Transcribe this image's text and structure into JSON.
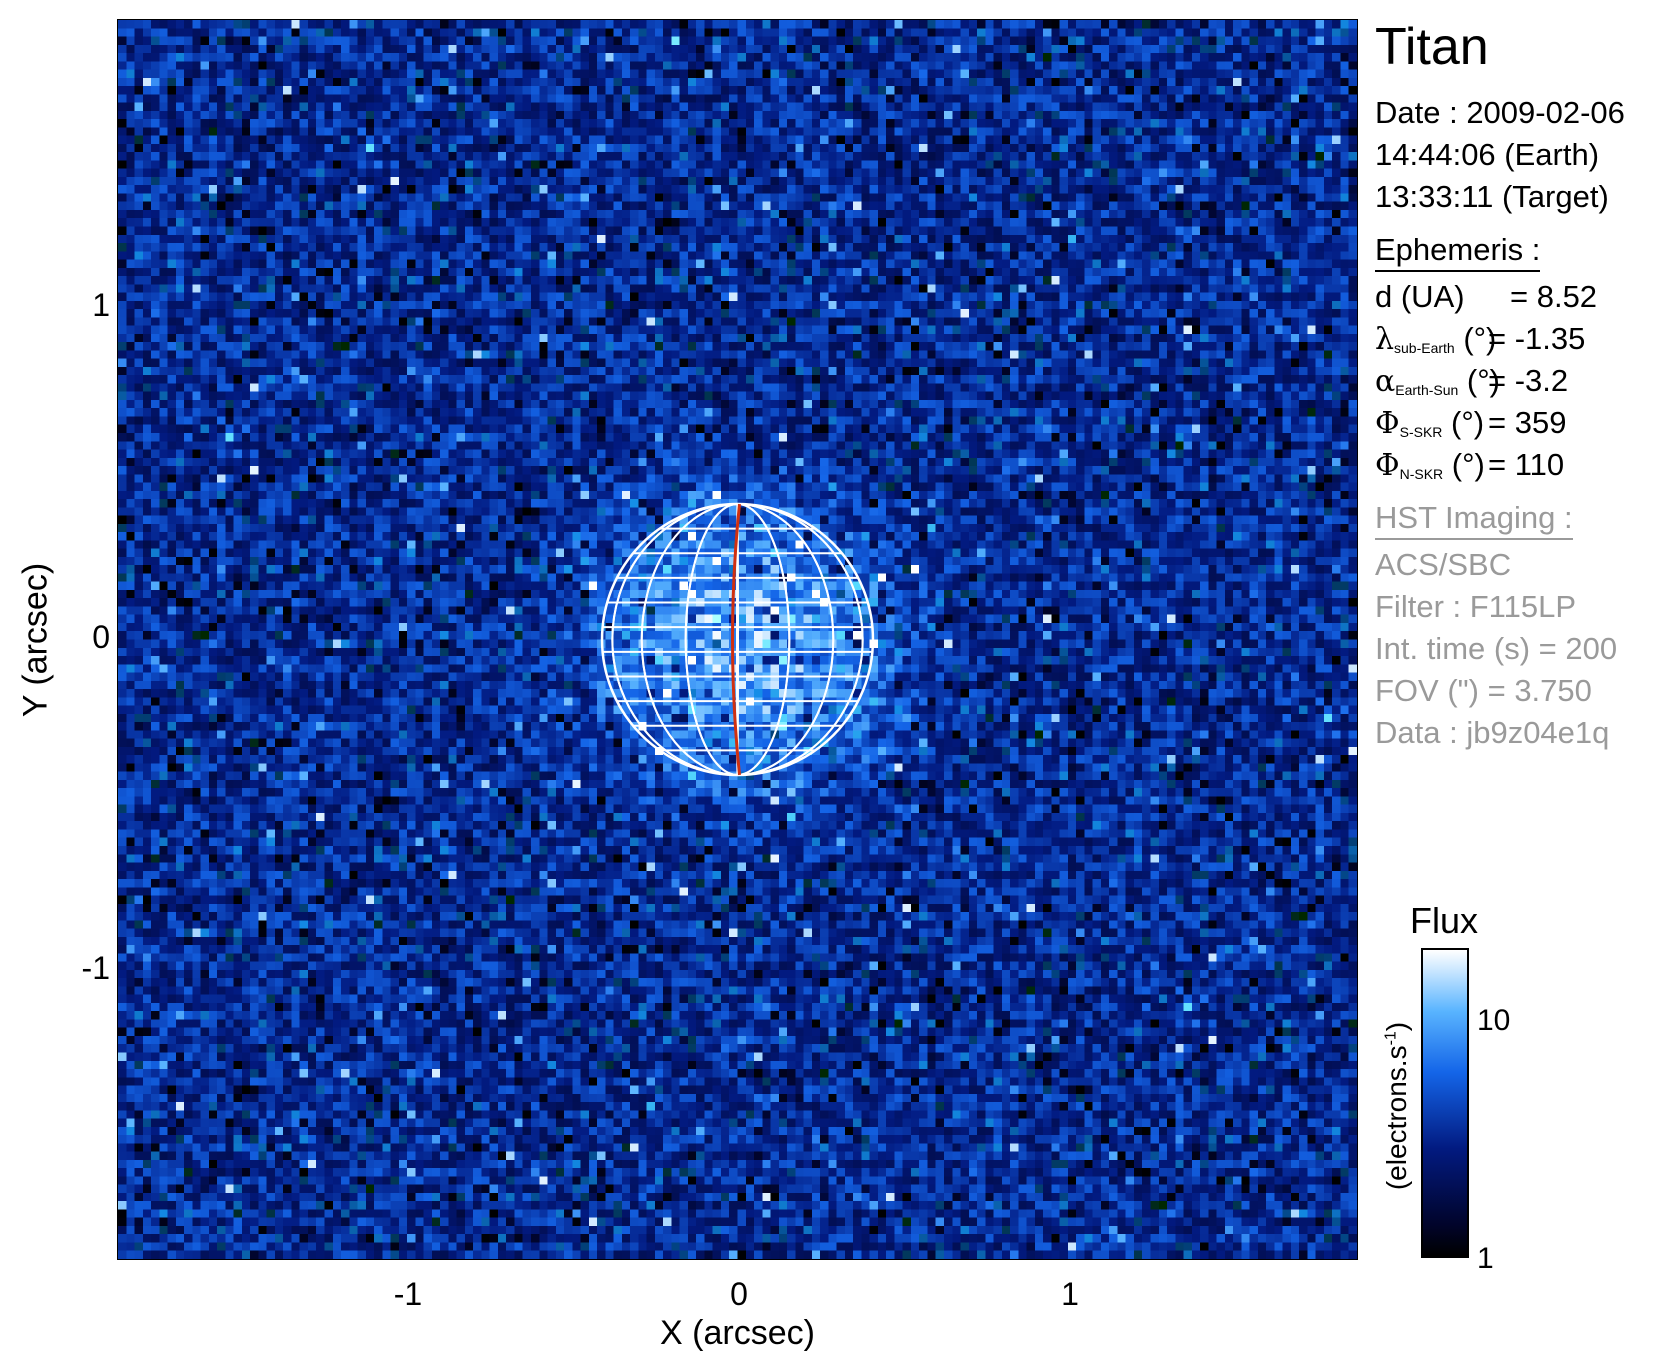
{
  "chart_data": {
    "type": "heatmap",
    "title": "Titan",
    "xlabel": "X (arcsec)",
    "ylabel": "Y (arcsec)",
    "xlim": [
      -1.875,
      1.875
    ],
    "ylim": [
      -1.875,
      1.875
    ],
    "x_ticks": [
      "-1",
      "0",
      "1"
    ],
    "x_tick_values": [
      -1,
      0,
      1
    ],
    "y_ticks": [
      "1",
      "0",
      "-1"
    ],
    "y_tick_values": [
      1,
      0,
      -1
    ],
    "disk": {
      "center_x": 0,
      "center_y": 0,
      "radius_arcsec": 0.41,
      "meridians": 8,
      "parallels": 11
    },
    "colorbar": {
      "title": "Flux",
      "unit_label": "(electrons.s",
      "unit_exponent": "-1",
      "unit_close": ")",
      "scale": "log",
      "range": [
        1,
        20
      ],
      "ticks": [
        {
          "value": 10,
          "label": "10"
        },
        {
          "value": 1,
          "label": "1"
        }
      ]
    }
  },
  "info": {
    "target": "Titan",
    "date_line": "Date : 2009-02-06",
    "earth_time": "14:44:06 (Earth)",
    "target_time": "13:33:11 (Target)",
    "ephemeris_header": "Ephemeris :",
    "ephemeris": [
      {
        "symbol": "d",
        "sub": "",
        "label": " (UA)",
        "value": "= 8.52"
      },
      {
        "symbol": "λ",
        "sub": "sub-Earth",
        "label": " (°)",
        "value": "= -1.35"
      },
      {
        "symbol": "α",
        "sub": "Earth-Sun",
        "label": " (°)",
        "value": "= -3.2"
      },
      {
        "symbol": "Φ",
        "sub": "S-SKR",
        "label": " (°)",
        "value": "= 359"
      },
      {
        "symbol": "Φ",
        "sub": "N-SKR",
        "label": " (°)",
        "value": "= 110"
      }
    ],
    "hst_header": "HST Imaging :",
    "hst_lines": [
      "ACS/SBC",
      "Filter : F115LP",
      "Int. time (s) = 200",
      "FOV (\") = 3.750",
      "Data : jb9z04e1q"
    ]
  },
  "colors": {
    "grid": "#ffffff",
    "central_meridian": "#d03010",
    "muted_text": "#9a9a9a"
  }
}
